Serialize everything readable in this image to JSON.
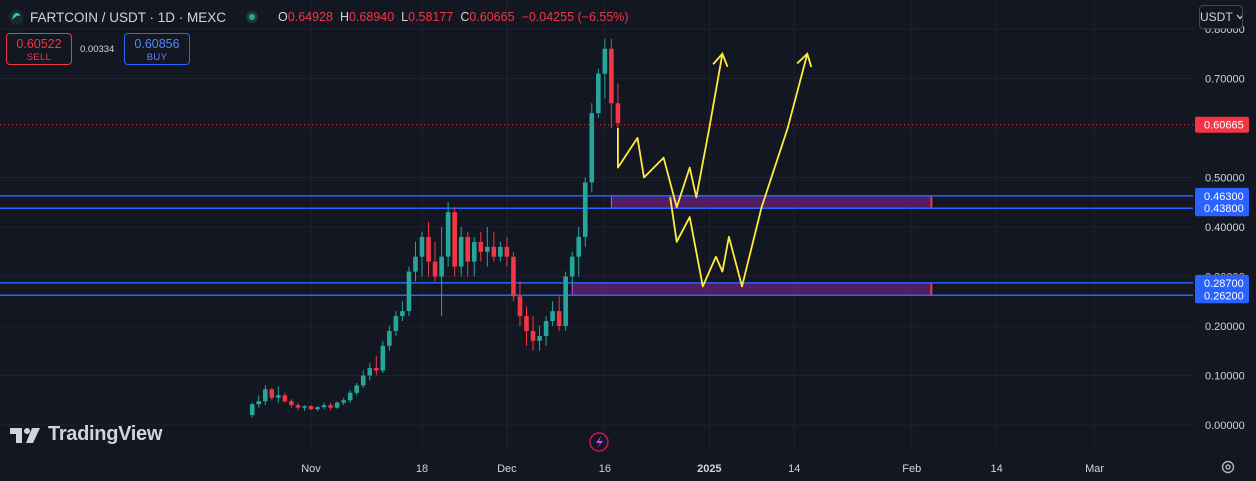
{
  "header": {
    "symbol_line": "FARTCOIN / USDT · 1D · MEXC",
    "ohlc": [
      {
        "k": "O",
        "v": "0.64928"
      },
      {
        "k": "H",
        "v": "0.68940"
      },
      {
        "k": "L",
        "v": "0.58177"
      },
      {
        "k": "C",
        "v": "0.60665"
      },
      {
        "k": "",
        "v": "−0.04255 (−6.55%)"
      }
    ]
  },
  "trade": {
    "sell_price": "0.60522",
    "sell_label": "SELL",
    "spread": "0.00334",
    "buy_price": "0.60856",
    "buy_label": "BUY"
  },
  "currency_button": "USDT",
  "watermark": "TradingView",
  "icons": [
    "fartcoin-symbol-icon",
    "market-status-icon",
    "chevron-down-icon",
    "tradingview-logo-icon",
    "lightning-icon",
    "settings-gear-icon"
  ],
  "colors": {
    "background": "#131722",
    "up": "#26a69a",
    "down": "#f23645",
    "level_line": "#2962ff",
    "zone": "#9c27b0",
    "projection": "#ffeb3b",
    "price_line": "#f23645"
  },
  "chart_data": {
    "type": "candlestick",
    "y_axis": {
      "ticks": [
        0.0,
        0.1,
        0.2,
        0.3,
        0.4,
        0.5,
        0.6,
        0.7,
        0.8
      ],
      "tick_labels": [
        "0.00000",
        "0.10000",
        "0.20000",
        "0.30000",
        "0.40000",
        "0.50000",
        "0.60000",
        "0.70000",
        "0.80000"
      ],
      "range": [
        -0.02,
        0.82
      ]
    },
    "x_axis": {
      "labels": [
        {
          "text": "Nov",
          "day": 31
        },
        {
          "text": "18",
          "day": 48
        },
        {
          "text": "Dec",
          "day": 61
        },
        {
          "text": "16",
          "day": 76
        },
        {
          "text": "2025",
          "day": 92
        },
        {
          "text": "14",
          "day": 105
        },
        {
          "text": "Feb",
          "day": 123
        },
        {
          "text": "14",
          "day": 136
        },
        {
          "text": "Mar",
          "day": 151
        }
      ],
      "day_range": [
        0,
        160
      ]
    },
    "start_day": 22,
    "candles": [
      [
        0.02,
        0.045,
        0.015,
        0.042
      ],
      [
        0.042,
        0.06,
        0.035,
        0.048
      ],
      [
        0.048,
        0.08,
        0.04,
        0.072
      ],
      [
        0.072,
        0.075,
        0.05,
        0.055
      ],
      [
        0.055,
        0.078,
        0.045,
        0.06
      ],
      [
        0.06,
        0.065,
        0.045,
        0.048
      ],
      [
        0.048,
        0.052,
        0.035,
        0.04
      ],
      [
        0.04,
        0.045,
        0.03,
        0.035
      ],
      [
        0.035,
        0.04,
        0.028,
        0.038
      ],
      [
        0.038,
        0.04,
        0.03,
        0.032
      ],
      [
        0.032,
        0.038,
        0.028,
        0.036
      ],
      [
        0.036,
        0.045,
        0.032,
        0.04
      ],
      [
        0.04,
        0.045,
        0.03,
        0.035
      ],
      [
        0.035,
        0.048,
        0.033,
        0.045
      ],
      [
        0.045,
        0.055,
        0.04,
        0.05
      ],
      [
        0.05,
        0.07,
        0.045,
        0.065
      ],
      [
        0.065,
        0.085,
        0.06,
        0.08
      ],
      [
        0.08,
        0.11,
        0.075,
        0.1
      ],
      [
        0.1,
        0.125,
        0.09,
        0.115
      ],
      [
        0.115,
        0.14,
        0.1,
        0.11
      ],
      [
        0.11,
        0.17,
        0.105,
        0.16
      ],
      [
        0.16,
        0.2,
        0.15,
        0.19
      ],
      [
        0.19,
        0.23,
        0.18,
        0.22
      ],
      [
        0.22,
        0.25,
        0.21,
        0.23
      ],
      [
        0.23,
        0.32,
        0.22,
        0.31
      ],
      [
        0.31,
        0.37,
        0.29,
        0.34
      ],
      [
        0.34,
        0.39,
        0.3,
        0.38
      ],
      [
        0.38,
        0.41,
        0.3,
        0.33
      ],
      [
        0.33,
        0.37,
        0.29,
        0.3
      ],
      [
        0.3,
        0.4,
        0.22,
        0.34
      ],
      [
        0.34,
        0.45,
        0.32,
        0.43
      ],
      [
        0.43,
        0.44,
        0.3,
        0.32
      ],
      [
        0.32,
        0.4,
        0.3,
        0.38
      ],
      [
        0.38,
        0.39,
        0.3,
        0.33
      ],
      [
        0.33,
        0.38,
        0.3,
        0.37
      ],
      [
        0.37,
        0.39,
        0.33,
        0.35
      ],
      [
        0.35,
        0.4,
        0.32,
        0.36
      ],
      [
        0.36,
        0.39,
        0.33,
        0.34
      ],
      [
        0.34,
        0.37,
        0.33,
        0.36
      ],
      [
        0.36,
        0.38,
        0.32,
        0.34
      ],
      [
        0.34,
        0.35,
        0.25,
        0.26
      ],
      [
        0.26,
        0.29,
        0.2,
        0.22
      ],
      [
        0.22,
        0.24,
        0.16,
        0.19
      ],
      [
        0.19,
        0.22,
        0.15,
        0.17
      ],
      [
        0.17,
        0.2,
        0.15,
        0.18
      ],
      [
        0.18,
        0.22,
        0.16,
        0.21
      ],
      [
        0.21,
        0.25,
        0.2,
        0.23
      ],
      [
        0.23,
        0.26,
        0.19,
        0.2
      ],
      [
        0.2,
        0.31,
        0.19,
        0.3
      ],
      [
        0.3,
        0.35,
        0.28,
        0.34
      ],
      [
        0.34,
        0.4,
        0.3,
        0.38
      ],
      [
        0.38,
        0.5,
        0.36,
        0.49
      ],
      [
        0.49,
        0.65,
        0.47,
        0.63
      ],
      [
        0.63,
        0.72,
        0.62,
        0.71
      ],
      [
        0.71,
        0.78,
        0.66,
        0.76
      ],
      [
        0.76,
        0.78,
        0.6,
        0.65
      ],
      [
        0.65,
        0.69,
        0.58,
        0.61
      ]
    ],
    "current_price": 0.60665,
    "current_price_label": "0.60665",
    "levels": [
      {
        "value": 0.463,
        "label": "0.46300"
      },
      {
        "value": 0.438,
        "label": "0.43800"
      },
      {
        "value": 0.287,
        "label": "0.28700"
      },
      {
        "value": 0.262,
        "label": "0.26200"
      }
    ],
    "zones": [
      {
        "from_day": 77,
        "to_day": 126,
        "top": 0.463,
        "bottom": 0.438
      },
      {
        "from_day": 71,
        "to_day": 126,
        "top": 0.287,
        "bottom": 0.262
      }
    ],
    "projection_path_1": [
      [
        78,
        0.6
      ],
      [
        78,
        0.52
      ],
      [
        81,
        0.58
      ],
      [
        82,
        0.5
      ],
      [
        85,
        0.54
      ],
      [
        87,
        0.44
      ],
      [
        89,
        0.52
      ],
      [
        90,
        0.46
      ],
      [
        92,
        0.6
      ],
      [
        94,
        0.75
      ]
    ],
    "projection_path_2": [
      [
        86,
        0.46
      ],
      [
        87,
        0.37
      ],
      [
        89,
        0.42
      ],
      [
        91,
        0.28
      ],
      [
        93,
        0.34
      ],
      [
        94,
        0.31
      ],
      [
        95,
        0.38
      ],
      [
        97,
        0.28
      ],
      [
        100,
        0.44
      ],
      [
        104,
        0.6
      ],
      [
        107,
        0.75
      ]
    ],
    "arrow_heads": [
      [
        94,
        0.75
      ],
      [
        107,
        0.75
      ]
    ]
  }
}
